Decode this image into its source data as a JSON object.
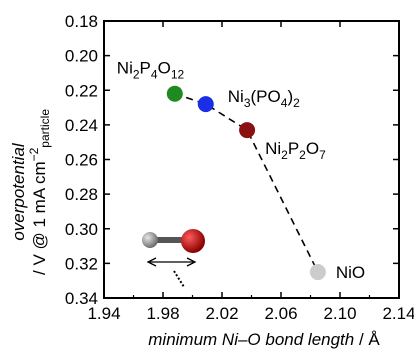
{
  "chart_data": {
    "type": "scatter",
    "xlabel_parts": [
      {
        "t": "minimum Ni–O bond length",
        "italic": true
      },
      {
        "t": " / Å",
        "italic": false
      }
    ],
    "ylabel_line1": "overpotential",
    "ylabel_line2_parts": [
      {
        "t": "/ V @ 1 mA cm",
        "shift": null
      },
      {
        "t": "−2",
        "shift": "super"
      },
      {
        "t": "particle",
        "shift": "sub"
      }
    ],
    "xlim": [
      1.94,
      2.14
    ],
    "ylim": [
      0.18,
      0.34
    ],
    "y_inverted": true,
    "xticks": [
      1.94,
      1.98,
      2.02,
      2.06,
      2.1,
      2.14
    ],
    "xtick_labels": [
      "1.94",
      "1.98",
      "2.02",
      "2.06",
      "2.10",
      "2.14"
    ],
    "yticks": [
      0.18,
      0.2,
      0.22,
      0.24,
      0.26,
      0.28,
      0.3,
      0.32,
      0.34
    ],
    "ytick_labels": [
      "0.18",
      "0.20",
      "0.22",
      "0.24",
      "0.26",
      "0.28",
      "0.30",
      "0.32",
      "0.34"
    ],
    "grid": false,
    "points": [
      {
        "x": 1.988,
        "y": 0.222,
        "color": "#1f8a1f",
        "label_parts": [
          {
            "t": "Ni"
          },
          {
            "t": "2",
            "sub": true
          },
          {
            "t": "P"
          },
          {
            "t": "4",
            "sub": true
          },
          {
            "t": "O"
          },
          {
            "t": "12",
            "sub": true
          }
        ]
      },
      {
        "x": 2.009,
        "y": 0.228,
        "color": "#1a2ee6",
        "label_parts": [
          {
            "t": "Ni"
          },
          {
            "t": "3",
            "sub": true
          },
          {
            "t": "(PO"
          },
          {
            "t": "4",
            "sub": true
          },
          {
            "t": ")"
          },
          {
            "t": "2",
            "sub": true
          }
        ]
      },
      {
        "x": 2.037,
        "y": 0.243,
        "color": "#8b1010",
        "label_parts": [
          {
            "t": "Ni"
          },
          {
            "t": "2",
            "sub": true
          },
          {
            "t": "P"
          },
          {
            "t": "2",
            "sub": true
          },
          {
            "t": "O"
          },
          {
            "t": "7",
            "sub": true
          }
        ]
      },
      {
        "x": 2.085,
        "y": 0.325,
        "color": "#cccccc",
        "label_parts": [
          {
            "t": "NiO"
          }
        ]
      }
    ],
    "dashed_line": true,
    "inset": {
      "description_icon": "ni-o-bond-icon",
      "atom_colors": {
        "ni": "#9a9a9a",
        "o": "#c01010"
      }
    }
  }
}
